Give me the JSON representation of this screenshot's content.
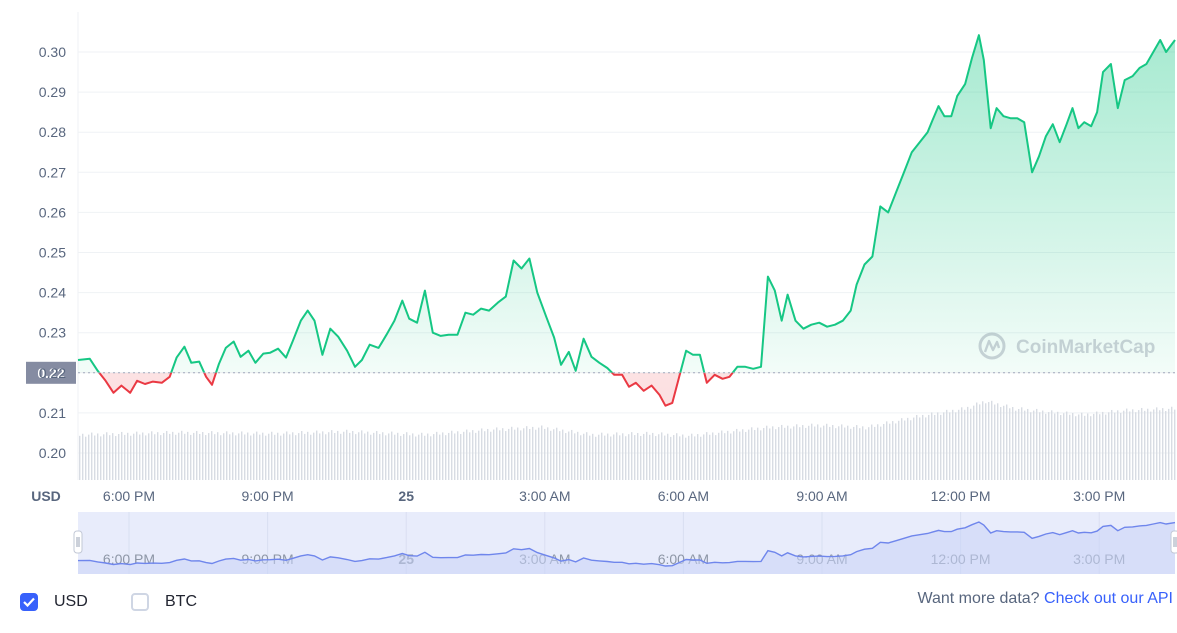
{
  "chart_data": {
    "type": "line",
    "ylabel": "USD",
    "ylim": [
      0.195,
      0.305
    ],
    "y_ticks": [
      "0.30",
      "0.29",
      "0.28",
      "0.27",
      "0.26",
      "0.25",
      "0.24",
      "0.23",
      "0.22",
      "0.21",
      "0.20"
    ],
    "x_ticks": [
      "6:00 PM",
      "9:00 PM",
      "25",
      "3:00 AM",
      "6:00 AM",
      "9:00 AM",
      "12:00 PM",
      "3:00 PM"
    ],
    "bold_tick": "25",
    "reference_price": 0.22,
    "reference_label": "0.22",
    "up_color": "#16c784",
    "down_color": "#ea3943",
    "price_points": [
      [
        0.0,
        0.2232
      ],
      [
        1.2,
        0.2235
      ],
      [
        2.0,
        0.2205
      ],
      [
        2.8,
        0.218
      ],
      [
        3.6,
        0.215
      ],
      [
        4.4,
        0.2168
      ],
      [
        5.3,
        0.215
      ],
      [
        6.0,
        0.218
      ],
      [
        6.8,
        0.2172
      ],
      [
        7.6,
        0.2178
      ],
      [
        8.5,
        0.2175
      ],
      [
        9.3,
        0.219
      ],
      [
        10.0,
        0.2238
      ],
      [
        10.8,
        0.2265
      ],
      [
        11.5,
        0.2225
      ],
      [
        12.3,
        0.2228
      ],
      [
        13.0,
        0.219
      ],
      [
        13.6,
        0.217
      ],
      [
        14.3,
        0.2222
      ],
      [
        15.0,
        0.2262
      ],
      [
        15.8,
        0.2278
      ],
      [
        16.5,
        0.224
      ],
      [
        17.3,
        0.2255
      ],
      [
        18.0,
        0.2225
      ],
      [
        18.8,
        0.2248
      ],
      [
        19.5,
        0.225
      ],
      [
        20.3,
        0.226
      ],
      [
        21.1,
        0.2238
      ],
      [
        21.8,
        0.228
      ],
      [
        22.6,
        0.233
      ],
      [
        23.3,
        0.2355
      ],
      [
        24.0,
        0.233
      ],
      [
        24.8,
        0.2245
      ],
      [
        25.6,
        0.231
      ],
      [
        26.4,
        0.229
      ],
      [
        27.3,
        0.2255
      ],
      [
        28.1,
        0.2215
      ],
      [
        28.8,
        0.2232
      ],
      [
        29.6,
        0.227
      ],
      [
        30.5,
        0.2262
      ],
      [
        31.3,
        0.2295
      ],
      [
        32.1,
        0.233
      ],
      [
        32.9,
        0.238
      ],
      [
        33.6,
        0.2335
      ],
      [
        34.4,
        0.2325
      ],
      [
        35.2,
        0.2405
      ],
      [
        36.0,
        0.23
      ],
      [
        36.8,
        0.2292
      ],
      [
        37.6,
        0.2295
      ],
      [
        38.5,
        0.2295
      ],
      [
        39.3,
        0.235
      ],
      [
        40.1,
        0.2345
      ],
      [
        40.9,
        0.236
      ],
      [
        41.7,
        0.2355
      ],
      [
        42.6,
        0.2375
      ],
      [
        43.4,
        0.239
      ],
      [
        44.2,
        0.248
      ],
      [
        45.0,
        0.246
      ],
      [
        45.8,
        0.2485
      ],
      [
        46.6,
        0.24
      ],
      [
        47.5,
        0.234
      ],
      [
        48.3,
        0.2288
      ],
      [
        49.0,
        0.222
      ],
      [
        49.8,
        0.2252
      ],
      [
        50.5,
        0.2205
      ],
      [
        51.3,
        0.2285
      ],
      [
        52.1,
        0.224
      ],
      [
        52.9,
        0.2225
      ],
      [
        53.7,
        0.2212
      ],
      [
        54.4,
        0.2195
      ],
      [
        55.2,
        0.2195
      ],
      [
        55.9,
        0.2165
      ],
      [
        56.6,
        0.2175
      ],
      [
        57.4,
        0.2155
      ],
      [
        58.2,
        0.2168
      ],
      [
        59.0,
        0.2145
      ],
      [
        59.6,
        0.2118
      ],
      [
        60.3,
        0.2125
      ],
      [
        61.0,
        0.219
      ],
      [
        61.7,
        0.2255
      ],
      [
        62.4,
        0.2245
      ],
      [
        63.1,
        0.2245
      ],
      [
        63.8,
        0.2175
      ],
      [
        64.6,
        0.2195
      ],
      [
        65.4,
        0.2185
      ],
      [
        66.1,
        0.219
      ],
      [
        66.9,
        0.2215
      ],
      [
        67.7,
        0.2215
      ],
      [
        68.5,
        0.221
      ],
      [
        69.3,
        0.2215
      ],
      [
        70.0,
        0.244
      ],
      [
        70.7,
        0.2405
      ],
      [
        71.4,
        0.233
      ],
      [
        72.0,
        0.2395
      ],
      [
        72.8,
        0.233
      ],
      [
        73.6,
        0.231
      ],
      [
        74.4,
        0.232
      ],
      [
        75.2,
        0.2325
      ],
      [
        76.0,
        0.2315
      ],
      [
        76.8,
        0.232
      ],
      [
        77.6,
        0.233
      ],
      [
        78.4,
        0.2355
      ],
      [
        79.0,
        0.242
      ],
      [
        79.8,
        0.247
      ],
      [
        80.6,
        0.249
      ],
      [
        81.4,
        0.2615
      ],
      [
        82.2,
        0.26
      ],
      [
        83.0,
        0.265
      ],
      [
        83.8,
        0.27
      ],
      [
        84.6,
        0.275
      ],
      [
        85.4,
        0.2775
      ],
      [
        86.2,
        0.28
      ],
      [
        86.7,
        0.283
      ],
      [
        87.3,
        0.2865
      ],
      [
        87.9,
        0.284
      ],
      [
        88.6,
        0.284
      ],
      [
        89.2,
        0.289
      ],
      [
        90.0,
        0.292
      ],
      [
        90.7,
        0.2985
      ],
      [
        91.4,
        0.3042
      ],
      [
        91.9,
        0.298
      ],
      [
        92.6,
        0.281
      ],
      [
        93.2,
        0.286
      ],
      [
        93.9,
        0.284
      ],
      [
        94.6,
        0.2835
      ],
      [
        95.3,
        0.2835
      ],
      [
        96.0,
        0.2825
      ],
      [
        96.8,
        0.27
      ],
      [
        97.5,
        0.274
      ],
      [
        98.2,
        0.279
      ],
      [
        98.9,
        0.282
      ],
      [
        99.6,
        0.2775
      ],
      [
        100.3,
        0.282
      ],
      [
        100.9,
        0.286
      ],
      [
        101.5,
        0.281
      ],
      [
        102.1,
        0.2825
      ],
      [
        102.8,
        0.2815
      ],
      [
        103.4,
        0.285
      ],
      [
        104.0,
        0.295
      ],
      [
        104.8,
        0.297
      ],
      [
        105.5,
        0.286
      ],
      [
        106.2,
        0.293
      ],
      [
        107.0,
        0.294
      ],
      [
        107.7,
        0.296
      ],
      [
        108.4,
        0.297
      ],
      [
        109.1,
        0.3
      ],
      [
        109.8,
        0.303
      ],
      [
        110.4,
        0.3
      ],
      [
        111.3,
        0.303
      ]
    ],
    "volume_levels": [
      [
        0,
        0.43
      ],
      [
        10,
        0.45
      ],
      [
        20,
        0.44
      ],
      [
        27,
        0.46
      ],
      [
        35,
        0.43
      ],
      [
        42,
        0.48
      ],
      [
        47,
        0.5
      ],
      [
        52,
        0.43
      ],
      [
        58,
        0.44
      ],
      [
        62,
        0.42
      ],
      [
        70,
        0.5
      ],
      [
        75,
        0.52
      ],
      [
        80,
        0.5
      ],
      [
        85,
        0.6
      ],
      [
        90,
        0.68
      ],
      [
        92,
        0.75
      ],
      [
        95,
        0.68
      ],
      [
        98,
        0.65
      ],
      [
        102,
        0.62
      ],
      [
        106,
        0.66
      ],
      [
        111.3,
        0.68
      ]
    ],
    "navigator_range": [
      0.0,
      1.0
    ]
  },
  "watermark": {
    "text": "CoinMarketCap",
    "icon": "coinmarketcap-logo-icon"
  },
  "legend": [
    {
      "label": "USD",
      "checked": true
    },
    {
      "label": "BTC",
      "checked": false
    }
  ],
  "footer": {
    "prompt": "Want more data?",
    "link_text": "Check out our API"
  }
}
